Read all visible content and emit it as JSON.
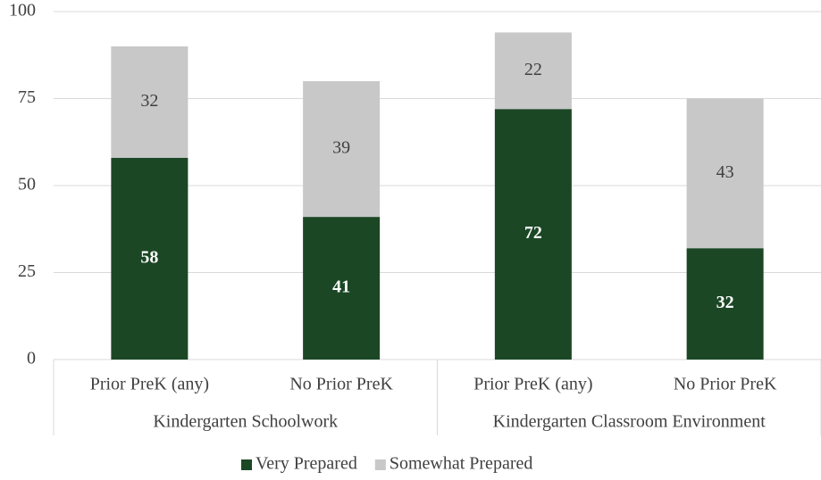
{
  "chart_data": {
    "type": "stacked_bar",
    "categories": [
      "Prior PreK (any)",
      "No Prior PreK",
      "Prior PreK (any)",
      "No Prior PreK"
    ],
    "groups": [
      "Kindergarten Schoolwork",
      "Kindergarten Classroom Environment"
    ],
    "series": [
      {
        "name": "Very Prepared",
        "color": "#1b4725",
        "values": [
          58,
          41,
          72,
          32
        ]
      },
      {
        "name": "Somewhat Prepared",
        "color": "#c8c8c8",
        "values": [
          32,
          39,
          22,
          43
        ]
      }
    ],
    "ylim": [
      0,
      100
    ],
    "yticks": [
      0,
      25,
      50,
      75,
      100
    ],
    "grid": true,
    "legend": "bottom"
  }
}
